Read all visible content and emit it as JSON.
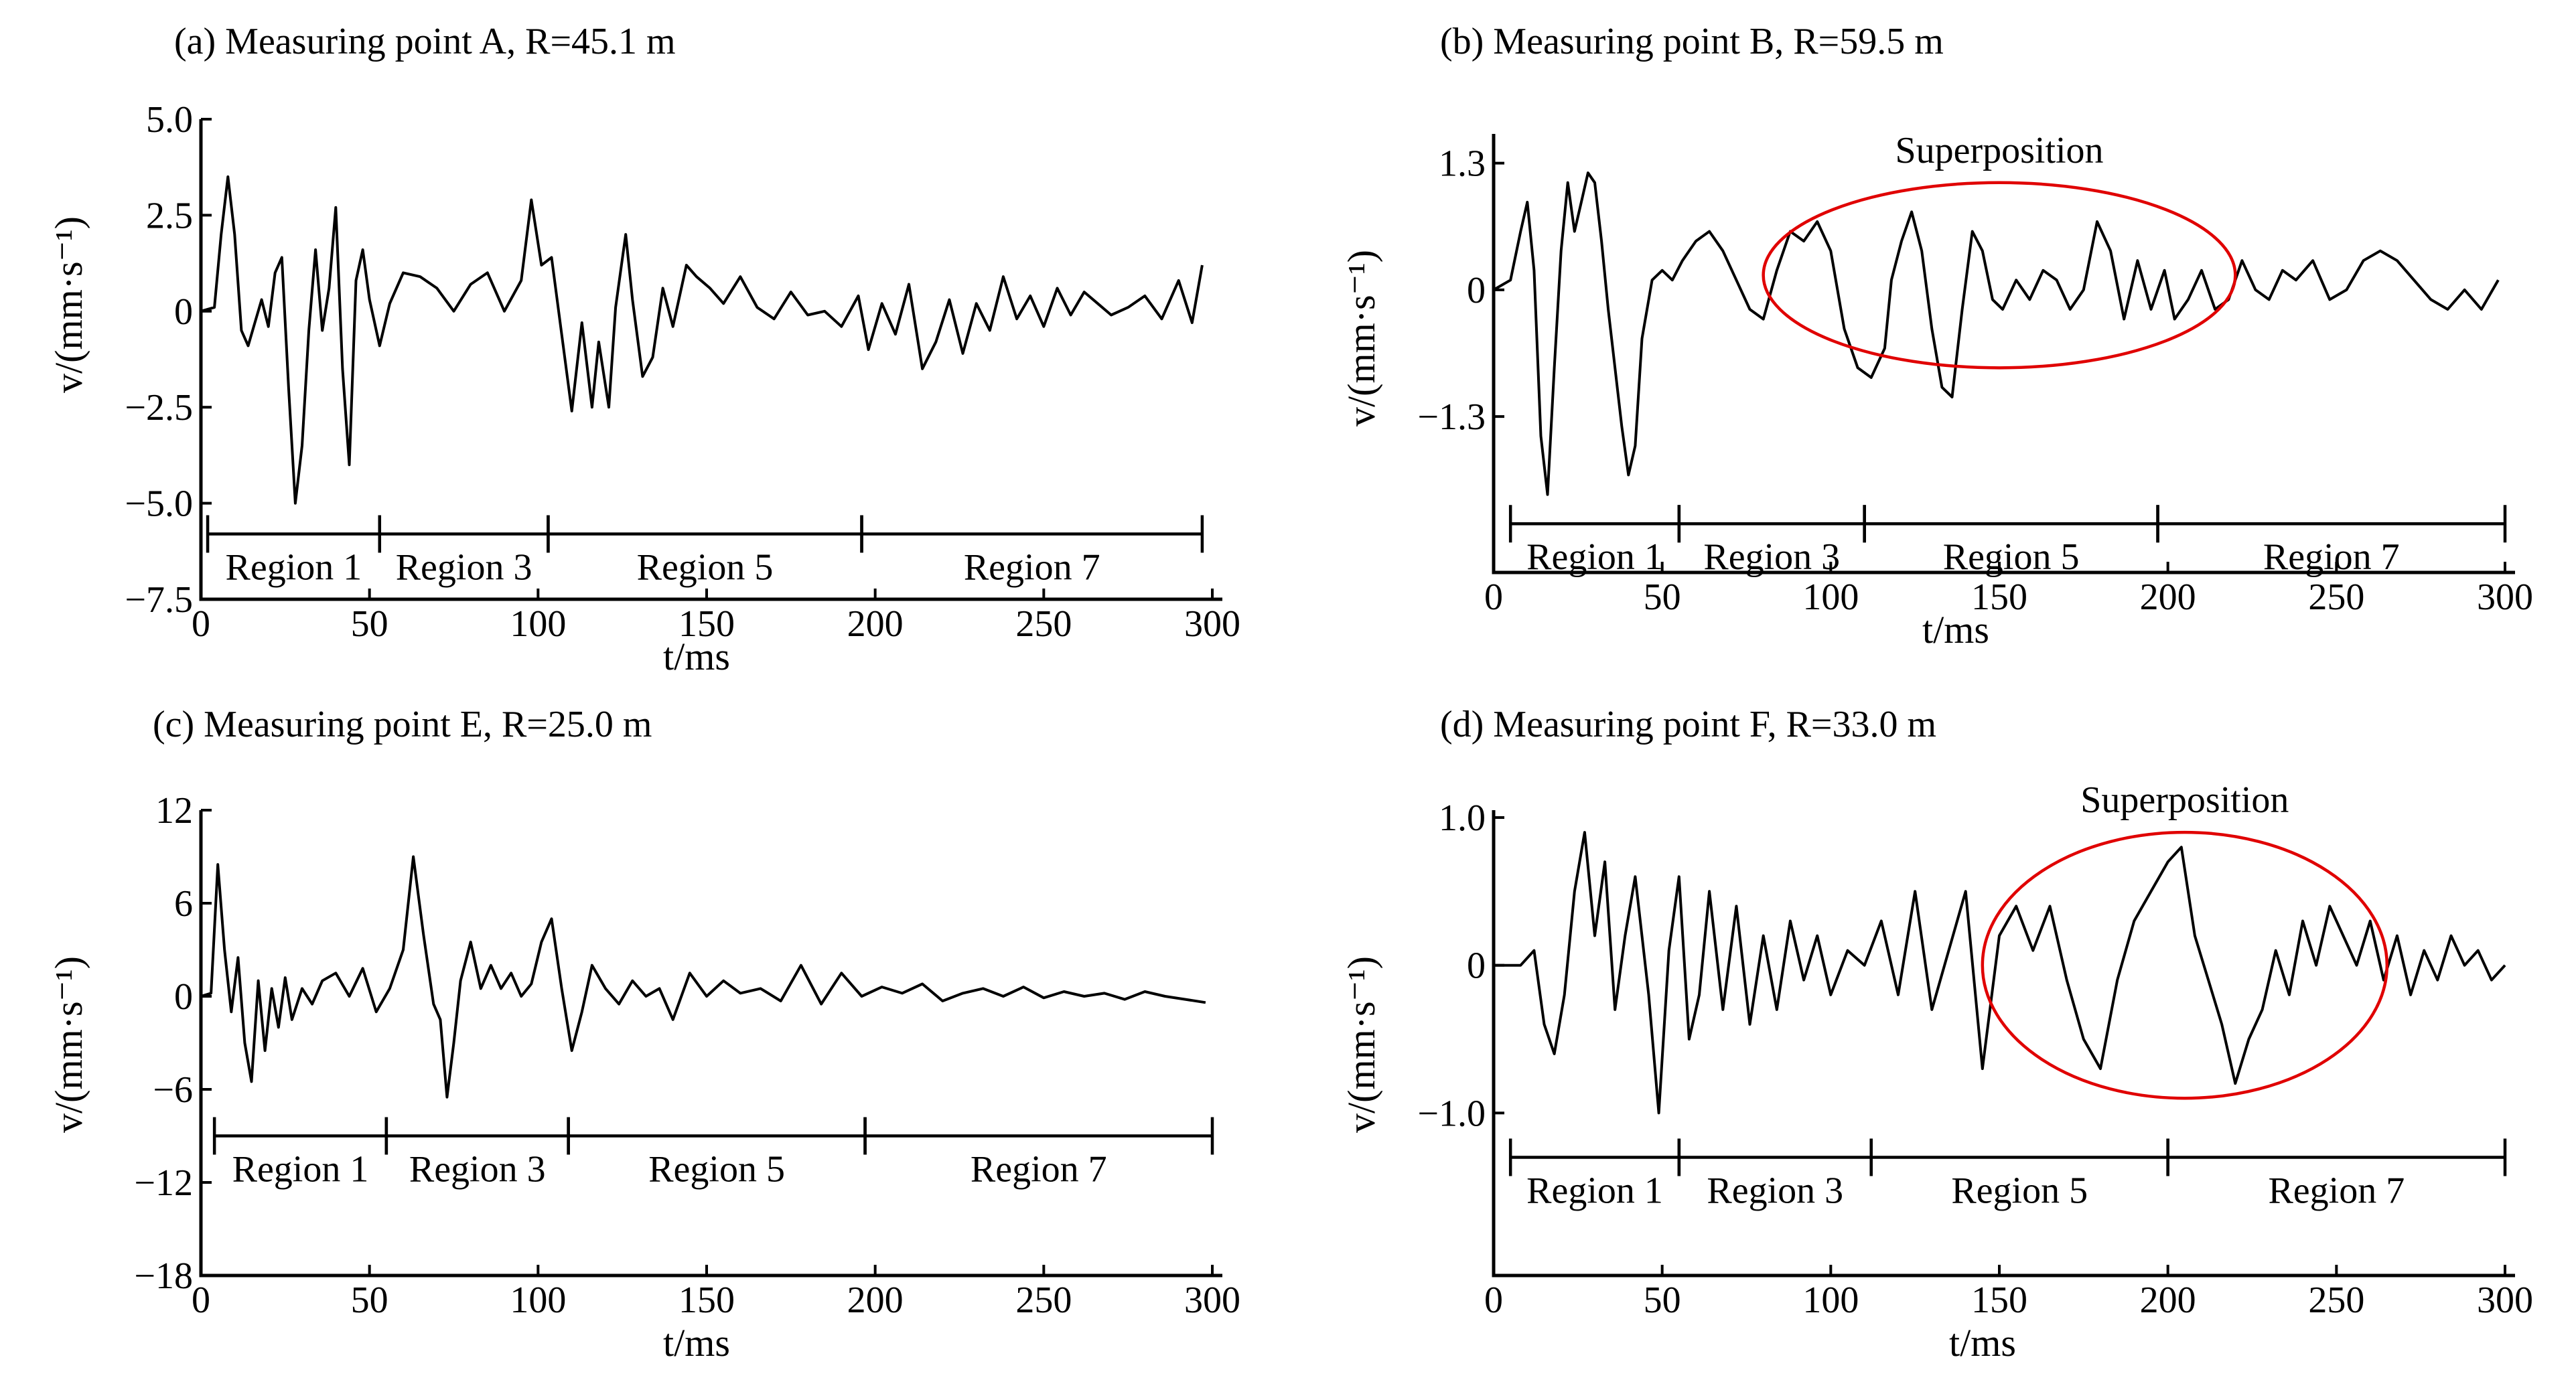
{
  "chart_data": [
    {
      "type": "line",
      "title": "(a) Measuring point A, R=45.1 m",
      "xlabel": "t/ms",
      "ylabel": "v/(mm·s⁻¹)",
      "xlim": [
        0,
        300
      ],
      "ylim": [
        -7.5,
        5.0
      ],
      "xticks": [
        0,
        50,
        100,
        150,
        200,
        250,
        300
      ],
      "yticks": [
        5.0,
        2.5,
        0,
        -2.5,
        -5.0,
        -7.5
      ],
      "ytick_labels": [
        "5.0",
        "2.5",
        "0",
        "−2.5",
        "−5.0",
        "−7.5"
      ],
      "regions": [
        {
          "label": "Region 1",
          "start": 2,
          "end": 53
        },
        {
          "label": "Region 3",
          "start": 53,
          "end": 103
        },
        {
          "label": "Region 5",
          "start": 103,
          "end": 196
        },
        {
          "label": "Region 7",
          "start": 196,
          "end": 297
        }
      ],
      "region_y": -5.8,
      "series": [
        {
          "x": [
            0,
            4,
            6,
            8,
            10,
            12,
            14,
            16,
            18,
            20,
            22,
            24,
            26,
            28,
            30,
            32,
            34,
            36,
            38,
            40,
            42,
            44,
            46,
            48,
            50,
            53,
            56,
            60,
            65,
            70,
            75,
            80,
            85,
            90,
            95,
            98,
            101,
            104,
            107,
            110,
            113,
            116,
            118,
            121,
            123,
            126,
            128,
            131,
            134,
            137,
            140,
            144,
            147,
            151,
            155,
            160,
            165,
            170,
            175,
            180,
            185,
            190,
            195,
            198,
            202,
            206,
            210,
            214,
            218,
            222,
            226,
            230,
            234,
            238,
            242,
            246,
            250,
            254,
            258,
            262,
            266,
            270,
            275,
            280,
            285,
            290,
            294,
            297
          ],
          "y": [
            0,
            0.1,
            2.0,
            3.5,
            2.0,
            -0.5,
            -0.9,
            -0.3,
            0.3,
            -0.4,
            1.0,
            1.4,
            -2.0,
            -5.0,
            -3.5,
            -0.5,
            1.6,
            -0.5,
            0.6,
            2.7,
            -1.5,
            -4.0,
            0.8,
            1.6,
            0.3,
            -0.9,
            0.2,
            1.0,
            0.9,
            0.6,
            0.0,
            0.7,
            1.0,
            0.0,
            0.8,
            2.9,
            1.2,
            1.4,
            -0.6,
            -2.6,
            -0.3,
            -2.5,
            -0.8,
            -2.5,
            0.1,
            2.0,
            0.3,
            -1.7,
            -1.2,
            0.6,
            -0.4,
            1.2,
            0.9,
            0.6,
            0.2,
            0.9,
            0.1,
            -0.2,
            0.5,
            -0.1,
            0.0,
            -0.4,
            0.4,
            -1.0,
            0.2,
            -0.6,
            0.7,
            -1.5,
            -0.8,
            0.3,
            -1.1,
            0.2,
            -0.5,
            0.9,
            -0.2,
            0.4,
            -0.4,
            0.6,
            -0.1,
            0.5,
            0.2,
            -0.1,
            0.1,
            0.4,
            -0.2,
            0.8,
            -0.3,
            1.2
          ]
        }
      ],
      "annotations": []
    },
    {
      "type": "line",
      "title": "(b) Measuring point B, R=59.5 m",
      "xlabel": "t/ms",
      "ylabel": "v/(mm·s⁻¹)",
      "xlim": [
        0,
        300
      ],
      "ylim": [
        -2.9,
        1.6
      ],
      "xticks": [
        0,
        50,
        100,
        150,
        200,
        250,
        300
      ],
      "yticks": [
        1.3,
        0,
        -1.3
      ],
      "ytick_labels": [
        "1.3",
        "0",
        "−1.3"
      ],
      "regions": [
        {
          "label": "Region 1",
          "start": 5,
          "end": 55
        },
        {
          "label": "Region 3",
          "start": 55,
          "end": 110
        },
        {
          "label": "Region 5",
          "start": 110,
          "end": 197
        },
        {
          "label": "Region 7",
          "start": 197,
          "end": 300
        }
      ],
      "region_y": -2.4,
      "series": [
        {
          "x": [
            0,
            5,
            8,
            10,
            12,
            14,
            16,
            18,
            20,
            22,
            24,
            26,
            28,
            30,
            32,
            34,
            36,
            38,
            40,
            42,
            44,
            47,
            50,
            53,
            56,
            60,
            64,
            68,
            72,
            76,
            80,
            84,
            88,
            92,
            96,
            100,
            104,
            108,
            112,
            116,
            118,
            121,
            124,
            127,
            130,
            133,
            136,
            139,
            142,
            145,
            148,
            151,
            155,
            159,
            163,
            167,
            171,
            175,
            179,
            183,
            187,
            191,
            195,
            199,
            202,
            206,
            210,
            214,
            218,
            222,
            226,
            230,
            234,
            238,
            243,
            248,
            253,
            258,
            263,
            268,
            273,
            278,
            283,
            288,
            293,
            298
          ],
          "y": [
            0,
            0.1,
            0.6,
            0.9,
            0.2,
            -1.5,
            -2.1,
            -0.8,
            0.4,
            1.1,
            0.6,
            0.9,
            1.2,
            1.1,
            0.5,
            -0.2,
            -0.8,
            -1.4,
            -1.9,
            -1.6,
            -0.5,
            0.1,
            0.2,
            0.1,
            0.3,
            0.5,
            0.6,
            0.4,
            0.1,
            -0.2,
            -0.3,
            0.2,
            0.6,
            0.5,
            0.7,
            0.4,
            -0.4,
            -0.8,
            -0.9,
            -0.6,
            0.1,
            0.5,
            0.8,
            0.4,
            -0.4,
            -1.0,
            -1.1,
            -0.2,
            0.6,
            0.4,
            -0.1,
            -0.2,
            0.1,
            -0.1,
            0.2,
            0.1,
            -0.2,
            0.0,
            0.7,
            0.4,
            -0.3,
            0.3,
            -0.2,
            0.2,
            -0.3,
            -0.1,
            0.2,
            -0.2,
            -0.1,
            0.3,
            0.0,
            -0.1,
            0.2,
            0.1,
            0.3,
            -0.1,
            0.0,
            0.3,
            0.4,
            0.3,
            0.1,
            -0.1,
            -0.2,
            0.0,
            -0.2,
            0.1
          ]
        }
      ],
      "annotations": [
        {
          "label": "Superposition",
          "cx": 150,
          "cy": 0.15,
          "rx": 70,
          "ry": 0.95
        }
      ]
    },
    {
      "type": "line",
      "title": "(c) Measuring point E, R=25.0 m",
      "xlabel": "t/ms",
      "ylabel": "v/(mm·s⁻¹)",
      "xlim": [
        0,
        300
      ],
      "ylim": [
        -18,
        12
      ],
      "xticks": [
        0,
        50,
        100,
        150,
        200,
        250,
        300
      ],
      "yticks": [
        12,
        6,
        0,
        -6,
        -12,
        -18
      ],
      "ytick_labels": [
        "12",
        "6",
        "0",
        "−6",
        "−12",
        "−18"
      ],
      "regions": [
        {
          "label": "Region 1",
          "start": 4,
          "end": 55
        },
        {
          "label": "Region 3",
          "start": 55,
          "end": 109
        },
        {
          "label": "Region 5",
          "start": 109,
          "end": 197
        },
        {
          "label": "Region 7",
          "start": 197,
          "end": 300
        }
      ],
      "region_y": -9.0,
      "series": [
        {
          "x": [
            0,
            3,
            5,
            7,
            9,
            11,
            13,
            15,
            17,
            19,
            21,
            23,
            25,
            27,
            30,
            33,
            36,
            40,
            44,
            48,
            52,
            56,
            60,
            63,
            66,
            69,
            71,
            73,
            75,
            77,
            80,
            83,
            86,
            89,
            92,
            95,
            98,
            101,
            104,
            107,
            110,
            113,
            116,
            120,
            124,
            128,
            132,
            136,
            140,
            145,
            150,
            155,
            160,
            166,
            172,
            178,
            184,
            190,
            196,
            202,
            208,
            214,
            220,
            226,
            232,
            238,
            244,
            250,
            256,
            262,
            268,
            274,
            280,
            286,
            292,
            298
          ],
          "y": [
            0,
            0.2,
            8.5,
            3.0,
            -1.0,
            2.5,
            -3.0,
            -5.5,
            1.0,
            -3.5,
            0.5,
            -2.0,
            1.2,
            -1.5,
            0.5,
            -0.5,
            1.0,
            1.5,
            0.0,
            1.8,
            -1.0,
            0.5,
            3.0,
            9.0,
            4.0,
            -0.5,
            -1.5,
            -6.5,
            -3.0,
            1.0,
            3.5,
            0.5,
            2.0,
            0.5,
            1.5,
            0.0,
            0.8,
            3.5,
            5.0,
            0.5,
            -3.5,
            -1.0,
            2.0,
            0.5,
            -0.5,
            1.0,
            0.0,
            0.5,
            -1.5,
            1.5,
            0.0,
            1.0,
            0.2,
            0.5,
            -0.3,
            2.0,
            -0.5,
            1.5,
            0.0,
            0.6,
            0.2,
            0.8,
            -0.3,
            0.2,
            0.5,
            0.0,
            0.6,
            -0.1,
            0.3,
            0.0,
            0.2,
            -0.2,
            0.3,
            0.0,
            -0.2,
            -0.4
          ]
        }
      ],
      "annotations": []
    },
    {
      "type": "line",
      "title": "(d) Measuring point F, R=33.0 m",
      "xlabel": "t/ms",
      "ylabel": "v/(mm·s⁻¹)",
      "xlim": [
        0,
        300
      ],
      "ylim": [
        -2.1,
        1.05
      ],
      "xticks": [
        0,
        50,
        100,
        150,
        200,
        250,
        300
      ],
      "yticks": [
        1.0,
        0,
        -1.0
      ],
      "ytick_labels": [
        "1.0",
        "0",
        "−1.0"
      ],
      "regions": [
        {
          "label": "Region 1",
          "start": 5,
          "end": 55
        },
        {
          "label": "Region 3",
          "start": 55,
          "end": 112
        },
        {
          "label": "Region 5",
          "start": 112,
          "end": 200
        },
        {
          "label": "Region 7",
          "start": 200,
          "end": 300
        }
      ],
      "region_y": -1.3,
      "series": [
        {
          "x": [
            0,
            8,
            12,
            15,
            18,
            21,
            24,
            27,
            30,
            33,
            36,
            39,
            42,
            46,
            49,
            52,
            55,
            58,
            61,
            64,
            68,
            72,
            76,
            80,
            84,
            88,
            92,
            96,
            100,
            105,
            110,
            115,
            120,
            125,
            130,
            135,
            140,
            145,
            150,
            155,
            160,
            165,
            170,
            175,
            180,
            185,
            190,
            195,
            200,
            204,
            208,
            212,
            216,
            220,
            224,
            228,
            232,
            236,
            240,
            244,
            248,
            252,
            256,
            260,
            264,
            268,
            272,
            276,
            280,
            284,
            288,
            292,
            296,
            300
          ],
          "y": [
            0,
            0.0,
            0.1,
            -0.4,
            -0.6,
            -0.2,
            0.5,
            0.9,
            0.2,
            0.7,
            -0.3,
            0.2,
            0.6,
            -0.2,
            -1.0,
            0.1,
            0.6,
            -0.5,
            -0.2,
            0.5,
            -0.3,
            0.4,
            -0.4,
            0.2,
            -0.3,
            0.3,
            -0.1,
            0.2,
            -0.2,
            0.1,
            0.0,
            0.3,
            -0.2,
            0.5,
            -0.3,
            0.1,
            0.5,
            -0.7,
            0.2,
            0.4,
            0.1,
            0.4,
            -0.1,
            -0.5,
            -0.7,
            -0.1,
            0.3,
            0.5,
            0.7,
            0.8,
            0.2,
            -0.1,
            -0.4,
            -0.8,
            -0.5,
            -0.3,
            0.1,
            -0.2,
            0.3,
            0.0,
            0.4,
            0.2,
            0.0,
            0.3,
            -0.1,
            0.2,
            -0.2,
            0.1,
            -0.1,
            0.2,
            0.0,
            0.1,
            -0.1,
            0.0
          ]
        }
      ],
      "annotations": [
        {
          "label": "Superposition",
          "cx": 205,
          "cy": 0.0,
          "rx": 60,
          "ry": 0.9
        }
      ]
    }
  ]
}
